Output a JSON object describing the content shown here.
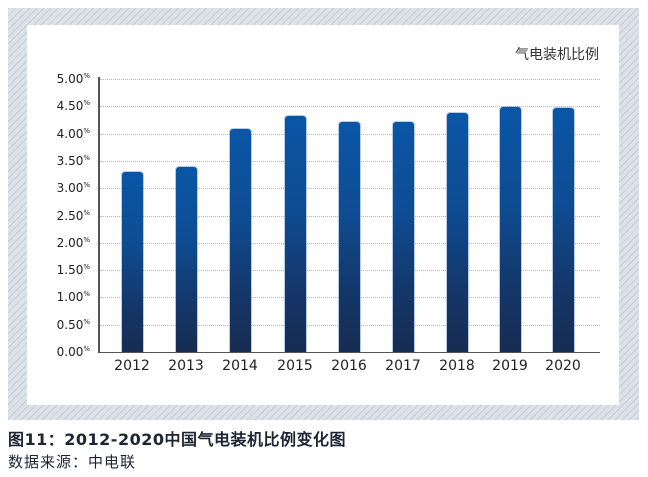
{
  "chart_data": {
    "type": "bar",
    "title": "图11：2012-2020中国气电装机比例变化图",
    "legend": [
      "气电装机比例"
    ],
    "legend_position": "top-right",
    "categories": [
      "2012",
      "2013",
      "2014",
      "2015",
      "2016",
      "2017",
      "2018",
      "2019",
      "2020"
    ],
    "series": [
      {
        "name": "气电装机比例",
        "values": [
          3.3,
          3.39,
          4.08,
          4.32,
          4.21,
          4.21,
          4.38,
          4.49,
          4.46
        ],
        "unit": "%"
      }
    ],
    "xlabel": "",
    "ylabel": "",
    "ylim": [
      0,
      5
    ],
    "yticks": [
      "0.00%",
      "0.50%",
      "1.00%",
      "1.50%",
      "2.00%",
      "2.50%",
      "3.00%",
      "3.50%",
      "4.00%",
      "4.50%",
      "5.00%"
    ],
    "grid": true,
    "bar_color": "#0a56a6"
  },
  "legend_label": "气电装机比例",
  "yticks": [
    {
      "num": "5.00",
      "pct": "%"
    },
    {
      "num": "4.50",
      "pct": "%"
    },
    {
      "num": "4.00",
      "pct": "%"
    },
    {
      "num": "3.50",
      "pct": "%"
    },
    {
      "num": "3.00",
      "pct": "%"
    },
    {
      "num": "2.50",
      "pct": "%"
    },
    {
      "num": "2.00",
      "pct": "%"
    },
    {
      "num": "1.50",
      "pct": "%"
    },
    {
      "num": "1.00",
      "pct": "%"
    },
    {
      "num": "0.50",
      "pct": "%"
    },
    {
      "num": "0.00",
      "pct": "%"
    }
  ],
  "xticks": [
    "2012",
    "2013",
    "2014",
    "2015",
    "2016",
    "2017",
    "2018",
    "2019",
    "2020"
  ],
  "caption": "图11：2012-2020中国气电装机比例变化图",
  "source": "数据来源：中电联"
}
